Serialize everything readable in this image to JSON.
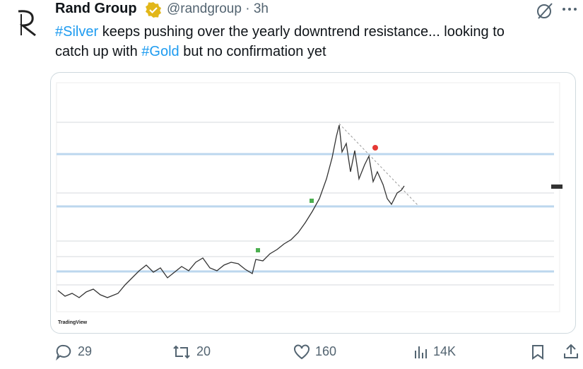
{
  "post": {
    "author": {
      "name": "Rand Group",
      "handle": "@randgroup",
      "time": "3h"
    },
    "text_lines": [
      [
        {
          "text": "#Silver",
          "hashtag": true
        },
        {
          "text": " keeps pushing over the yearly downtrend resistance... looking to",
          "hashtag": false
        }
      ],
      [
        {
          "text": "catch up with ",
          "hashtag": false
        },
        {
          "text": "#Gold",
          "hashtag": true
        },
        {
          "text": " but no confirmation yet",
          "hashtag": false
        }
      ]
    ],
    "image": {
      "watermark": "TradingView"
    },
    "stats": {
      "replies": 29,
      "reposts": 20,
      "likes": 160,
      "views": "14K"
    }
  }
}
